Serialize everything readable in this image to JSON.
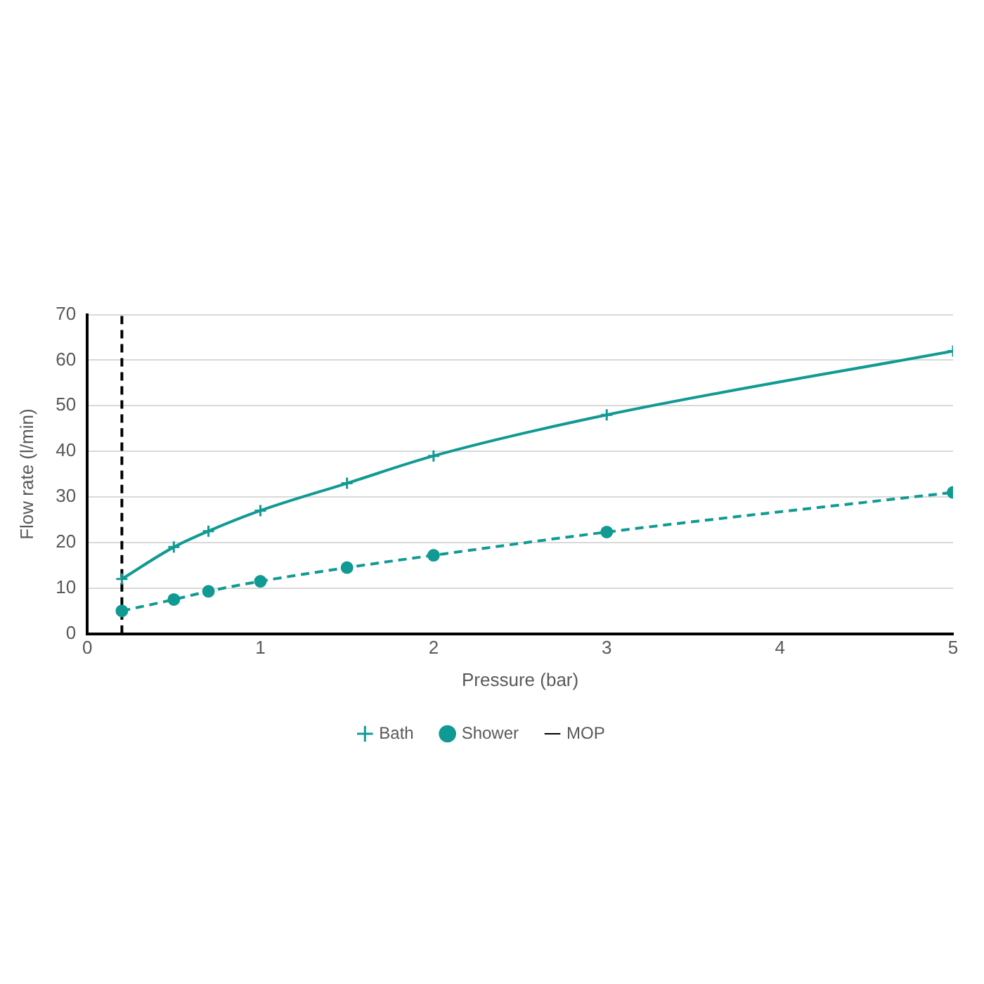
{
  "chart_data": {
    "type": "line",
    "xlabel": "Pressure (bar)",
    "ylabel": "Flow rate (l/min)",
    "xlim": [
      0,
      5
    ],
    "xticks": [
      0,
      1,
      2,
      3,
      4,
      5
    ],
    "ylim": [
      0,
      70
    ],
    "yticks": [
      0,
      10,
      20,
      30,
      40,
      50,
      60,
      70
    ],
    "grid": "y",
    "legend": "bottom",
    "series": [
      {
        "name": "Bath",
        "color": "#119a93",
        "x": [
          0.2,
          0.5,
          0.7,
          1,
          1.5,
          2,
          3,
          5
        ],
        "values": [
          12,
          19,
          22.5,
          27,
          33,
          39,
          48,
          62
        ],
        "marker": "cross",
        "line_style": "solid"
      },
      {
        "name": "Shower",
        "color": "#119a93",
        "x": [
          0.2,
          0.5,
          0.7,
          1,
          1.5,
          2,
          3,
          5
        ],
        "values": [
          5,
          7.5,
          9.3,
          11.5,
          14.5,
          17.2,
          22.3,
          31
        ],
        "marker": "circle",
        "line_style": "dashed"
      },
      {
        "name": "MOP",
        "color": "#000000",
        "x": [
          0.2,
          0.2
        ],
        "values": [
          0,
          70
        ],
        "marker": "none",
        "line_style": "dashed"
      }
    ]
  }
}
